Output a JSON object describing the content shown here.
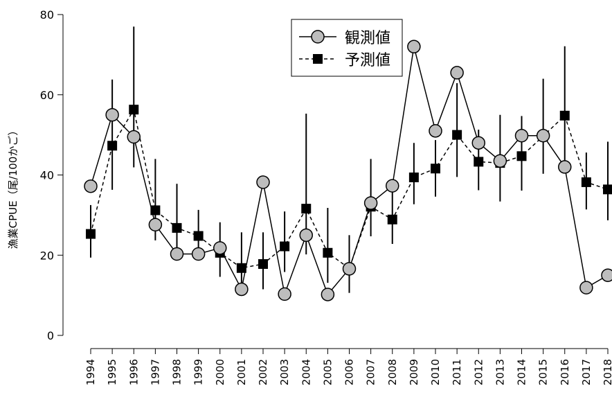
{
  "chart_data": {
    "type": "line",
    "ylabel": "漁業CPUE（尾/100かご）",
    "xlabel": "",
    "ylim": [
      0,
      80
    ],
    "yticks": [
      0,
      20,
      40,
      60,
      80
    ],
    "grid": false,
    "legend_position": "top-center",
    "categories": [
      "1994",
      "1995",
      "1996",
      "1997",
      "1998",
      "1999",
      "2000",
      "2001",
      "2002",
      "2003",
      "2004",
      "2005",
      "2006",
      "2007",
      "2008",
      "2009",
      "2010",
      "2011",
      "2012",
      "2013",
      "2014",
      "2015",
      "2016",
      "2017",
      "2018"
    ],
    "series": [
      {
        "name": "観測値",
        "marker": "circle",
        "line_style": "solid",
        "marker_color": "#bdbdbd",
        "values": [
          37.2,
          55.0,
          49.5,
          27.6,
          20.3,
          20.3,
          21.8,
          11.5,
          38.2,
          10.3,
          25.0,
          10.2,
          16.6,
          33.0,
          37.3,
          72.0,
          51.0,
          65.5,
          48.0,
          43.5,
          49.8,
          49.8,
          42.0,
          11.9,
          15.0
        ]
      },
      {
        "name": "予測値",
        "marker": "square",
        "line_style": "dashed",
        "marker_color": "#000000",
        "values": [
          25.3,
          47.3,
          56.3,
          31.2,
          26.8,
          24.8,
          20.6,
          16.8,
          17.8,
          22.2,
          31.6,
          20.6,
          16.7,
          32.1,
          28.9,
          39.4,
          41.6,
          50.0,
          43.3,
          43.0,
          44.7,
          49.7,
          54.8,
          38.2,
          36.4
        ],
        "error_low": [
          19.4,
          36.3,
          41.9,
          23.7,
          20.4,
          19.8,
          14.6,
          11.0,
          11.5,
          15.8,
          20.2,
          13.1,
          10.6,
          24.7,
          22.8,
          32.7,
          34.6,
          39.5,
          36.2,
          33.4,
          36.1,
          40.3,
          40.4,
          31.4,
          28.7
        ],
        "error_high": [
          32.5,
          63.8,
          77.0,
          44.0,
          37.8,
          31.3,
          28.2,
          25.7,
          25.7,
          30.9,
          55.3,
          31.8,
          25.0,
          44.0,
          36.0,
          48.0,
          48.7,
          62.9,
          51.3,
          55.0,
          54.7,
          64.0,
          72.1,
          45.6,
          48.3
        ]
      }
    ]
  }
}
